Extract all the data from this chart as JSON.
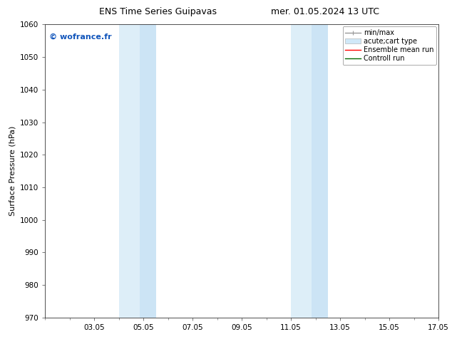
{
  "title_left": "ENS Time Series Guipavas",
  "title_right": "mer. 01.05.2024 13 UTC",
  "ylabel": "Surface Pressure (hPa)",
  "ylim": [
    970,
    1060
  ],
  "yticks": [
    970,
    980,
    990,
    1000,
    1010,
    1020,
    1030,
    1040,
    1050,
    1060
  ],
  "xlim_start": 1,
  "xlim_end": 17,
  "xtick_labels": [
    "03.05",
    "05.05",
    "07.05",
    "09.05",
    "11.05",
    "13.05",
    "15.05",
    "17.05"
  ],
  "xtick_positions": [
    3,
    5,
    7,
    9,
    11,
    13,
    15,
    17
  ],
  "shaded_bands": [
    {
      "x_start": 4.0,
      "x_end": 4.85,
      "color": "#ddeef8"
    },
    {
      "x_start": 4.85,
      "x_end": 5.5,
      "color": "#cce4f5"
    },
    {
      "x_start": 11.0,
      "x_end": 11.85,
      "color": "#ddeef8"
    },
    {
      "x_start": 11.85,
      "x_end": 12.5,
      "color": "#cce4f5"
    }
  ],
  "watermark_text": "© wofrance.fr",
  "watermark_color": "#1155bb",
  "bg_color": "#ffffff",
  "plot_bg_color": "#ffffff",
  "legend_items": [
    {
      "label": "min/max",
      "color": "#999999",
      "style": "minmax"
    },
    {
      "label": "acute;cart type",
      "color": "#cce8f8",
      "style": "band"
    },
    {
      "label": "Ensemble mean run",
      "color": "#ff0000",
      "style": "line"
    },
    {
      "label": "Controll run",
      "color": "#006600",
      "style": "line"
    }
  ],
  "title_fontsize": 9,
  "tick_fontsize": 7.5,
  "ylabel_fontsize": 8,
  "legend_fontsize": 7,
  "watermark_fontsize": 8
}
